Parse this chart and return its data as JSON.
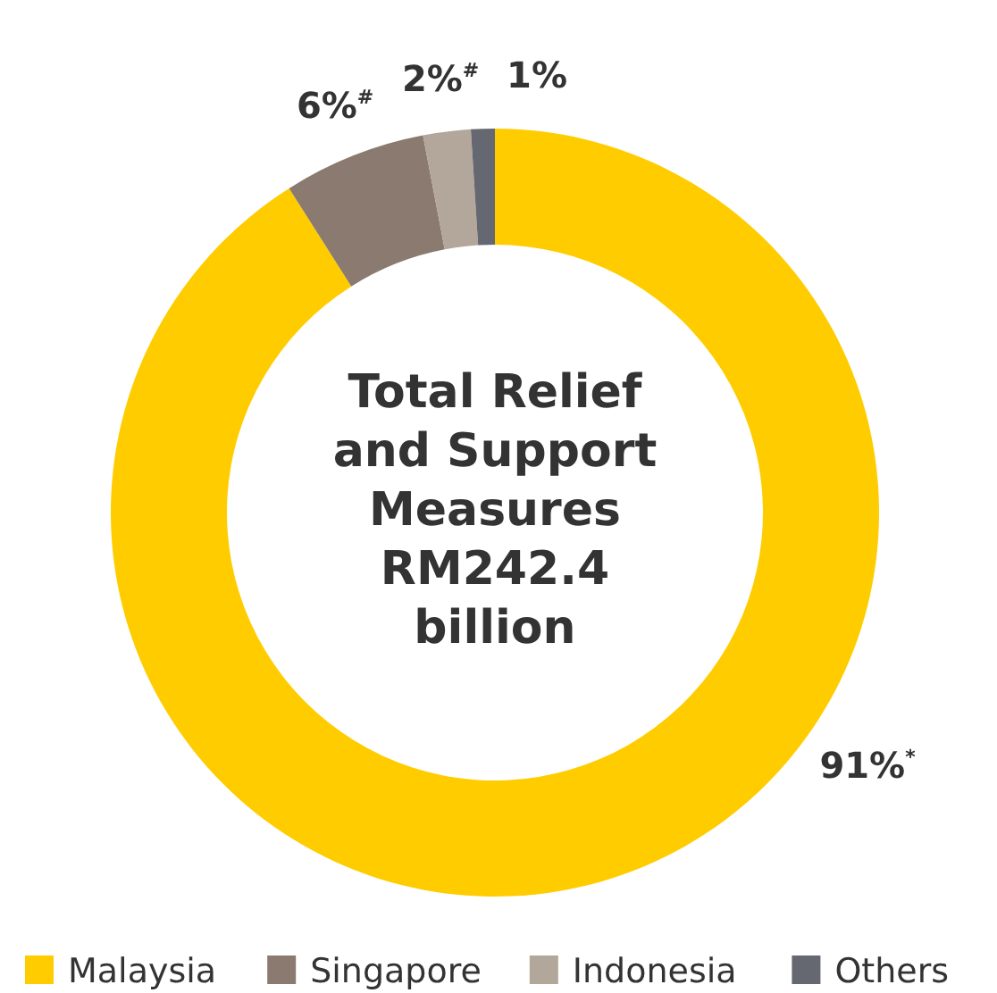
{
  "chart_data": {
    "type": "donut",
    "title": "Total Relief and Support Measures RM242.4 billion",
    "categories": [
      "Malaysia",
      "Singapore",
      "Indonesia",
      "Others"
    ],
    "values": [
      91,
      6,
      2,
      1
    ],
    "colors": [
      "#ffcc00",
      "#8b7a6f",
      "#b3a69b",
      "#656870"
    ],
    "value_labels": [
      "91%$^{*}$",
      "6%$^{#}$",
      "2%$^{#}$",
      "1%"
    ],
    "legend": "bottom"
  }
}
